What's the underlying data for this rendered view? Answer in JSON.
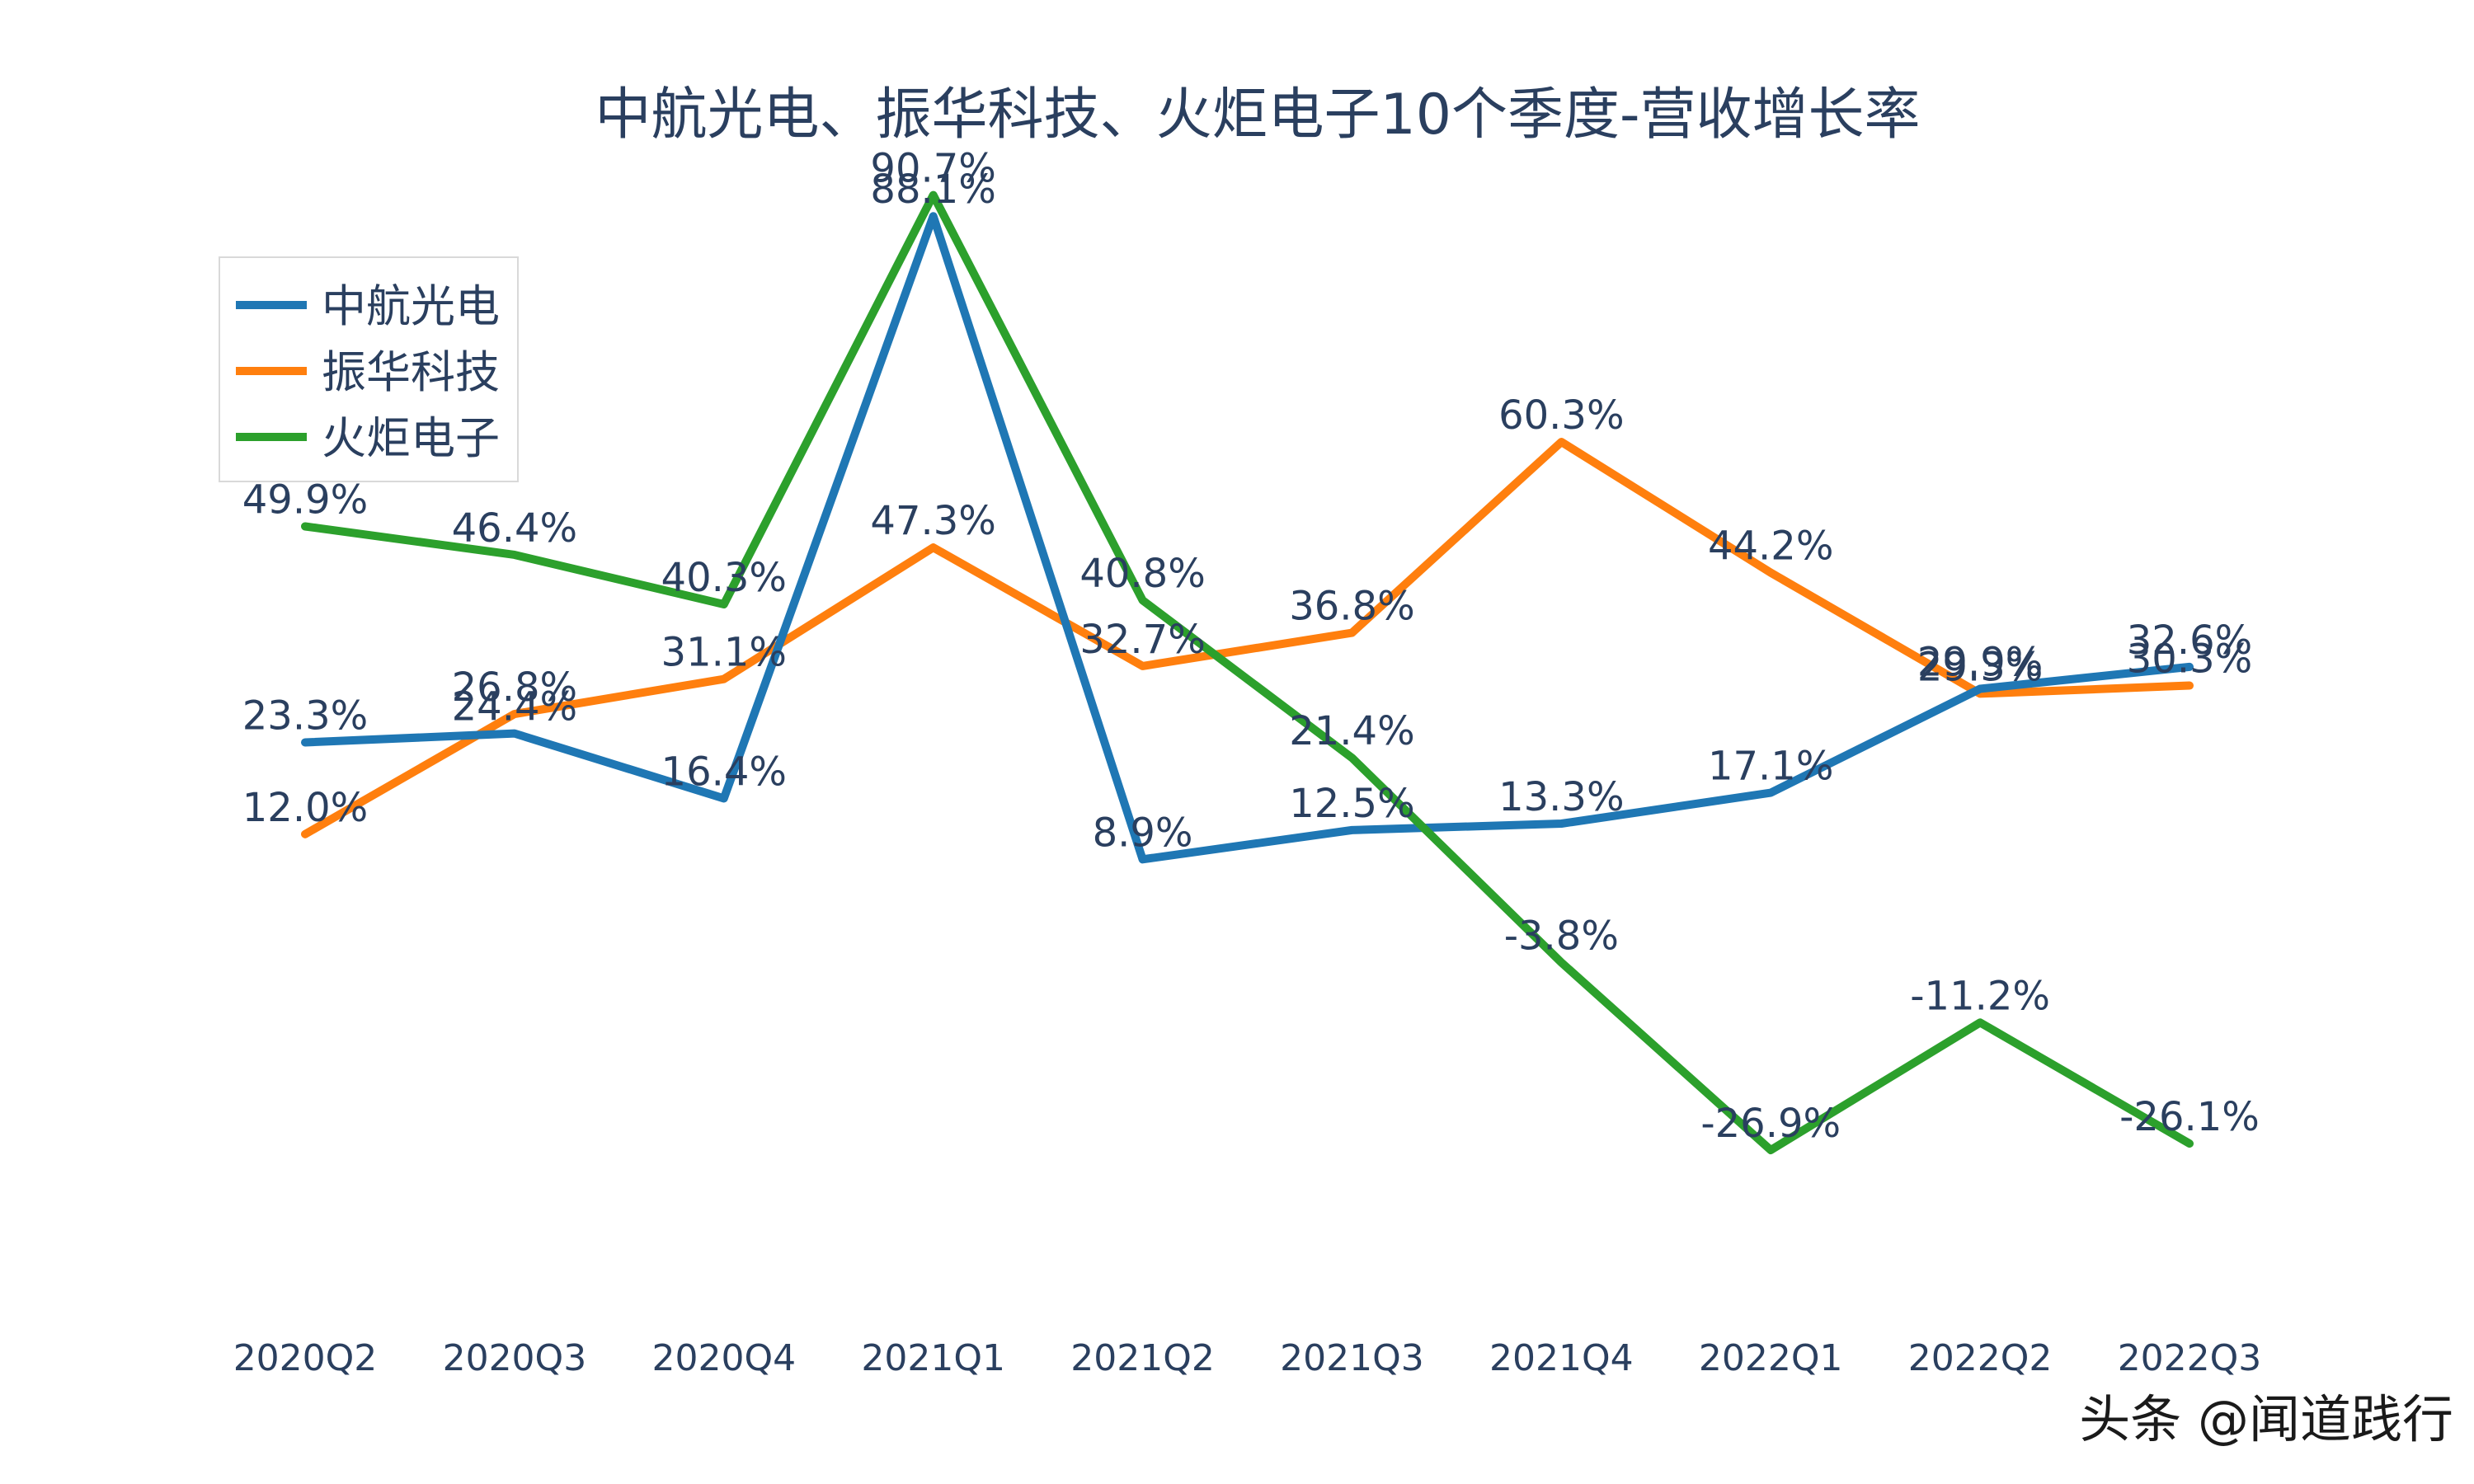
{
  "chart_data": {
    "type": "line",
    "title": "中航光电、振华科技、火炬电子10个季度-营收增长率",
    "xlabel": "",
    "ylabel": "",
    "categories": [
      "2020Q2",
      "2020Q3",
      "2020Q4",
      "2021Q1",
      "2021Q2",
      "2021Q3",
      "2021Q4",
      "2022Q1",
      "2022Q2",
      "2022Q3"
    ],
    "ylim": [
      -35,
      100
    ],
    "grid": false,
    "legend_position": "top-left",
    "series": [
      {
        "name": "中航光电",
        "color": "#1f77b4",
        "values": [
          23.3,
          24.4,
          16.4,
          88.1,
          8.9,
          12.5,
          13.3,
          17.1,
          29.9,
          32.6
        ],
        "labels": [
          "23.3%",
          "24.4%",
          "16.4%",
          "88.1%",
          "8.9%",
          "12.5%",
          "13.3%",
          "17.1%",
          "29.9%",
          "32.6%"
        ]
      },
      {
        "name": "振华科技",
        "color": "#ff7f0e",
        "values": [
          12.0,
          26.8,
          31.1,
          47.3,
          32.7,
          36.8,
          60.3,
          44.2,
          29.3,
          30.3
        ],
        "labels": [
          "12.0%",
          "26.8%",
          "31.1%",
          "47.3%",
          "32.7%",
          "36.8%",
          "60.3%",
          "44.2%",
          "29.3%",
          "30.3%"
        ]
      },
      {
        "name": "火炬电子",
        "color": "#2ca02c",
        "values": [
          49.9,
          46.4,
          40.3,
          90.7,
          40.8,
          21.4,
          -3.8,
          -26.9,
          -11.2,
          -26.1
        ],
        "labels": [
          "49.9%",
          "46.4%",
          "40.3%",
          "90.7%",
          "40.8%",
          "21.4%",
          "-3.8%",
          "-26.9%",
          "-11.2%",
          "-26.1%"
        ]
      }
    ]
  },
  "watermark": "头条 @闻道践行"
}
